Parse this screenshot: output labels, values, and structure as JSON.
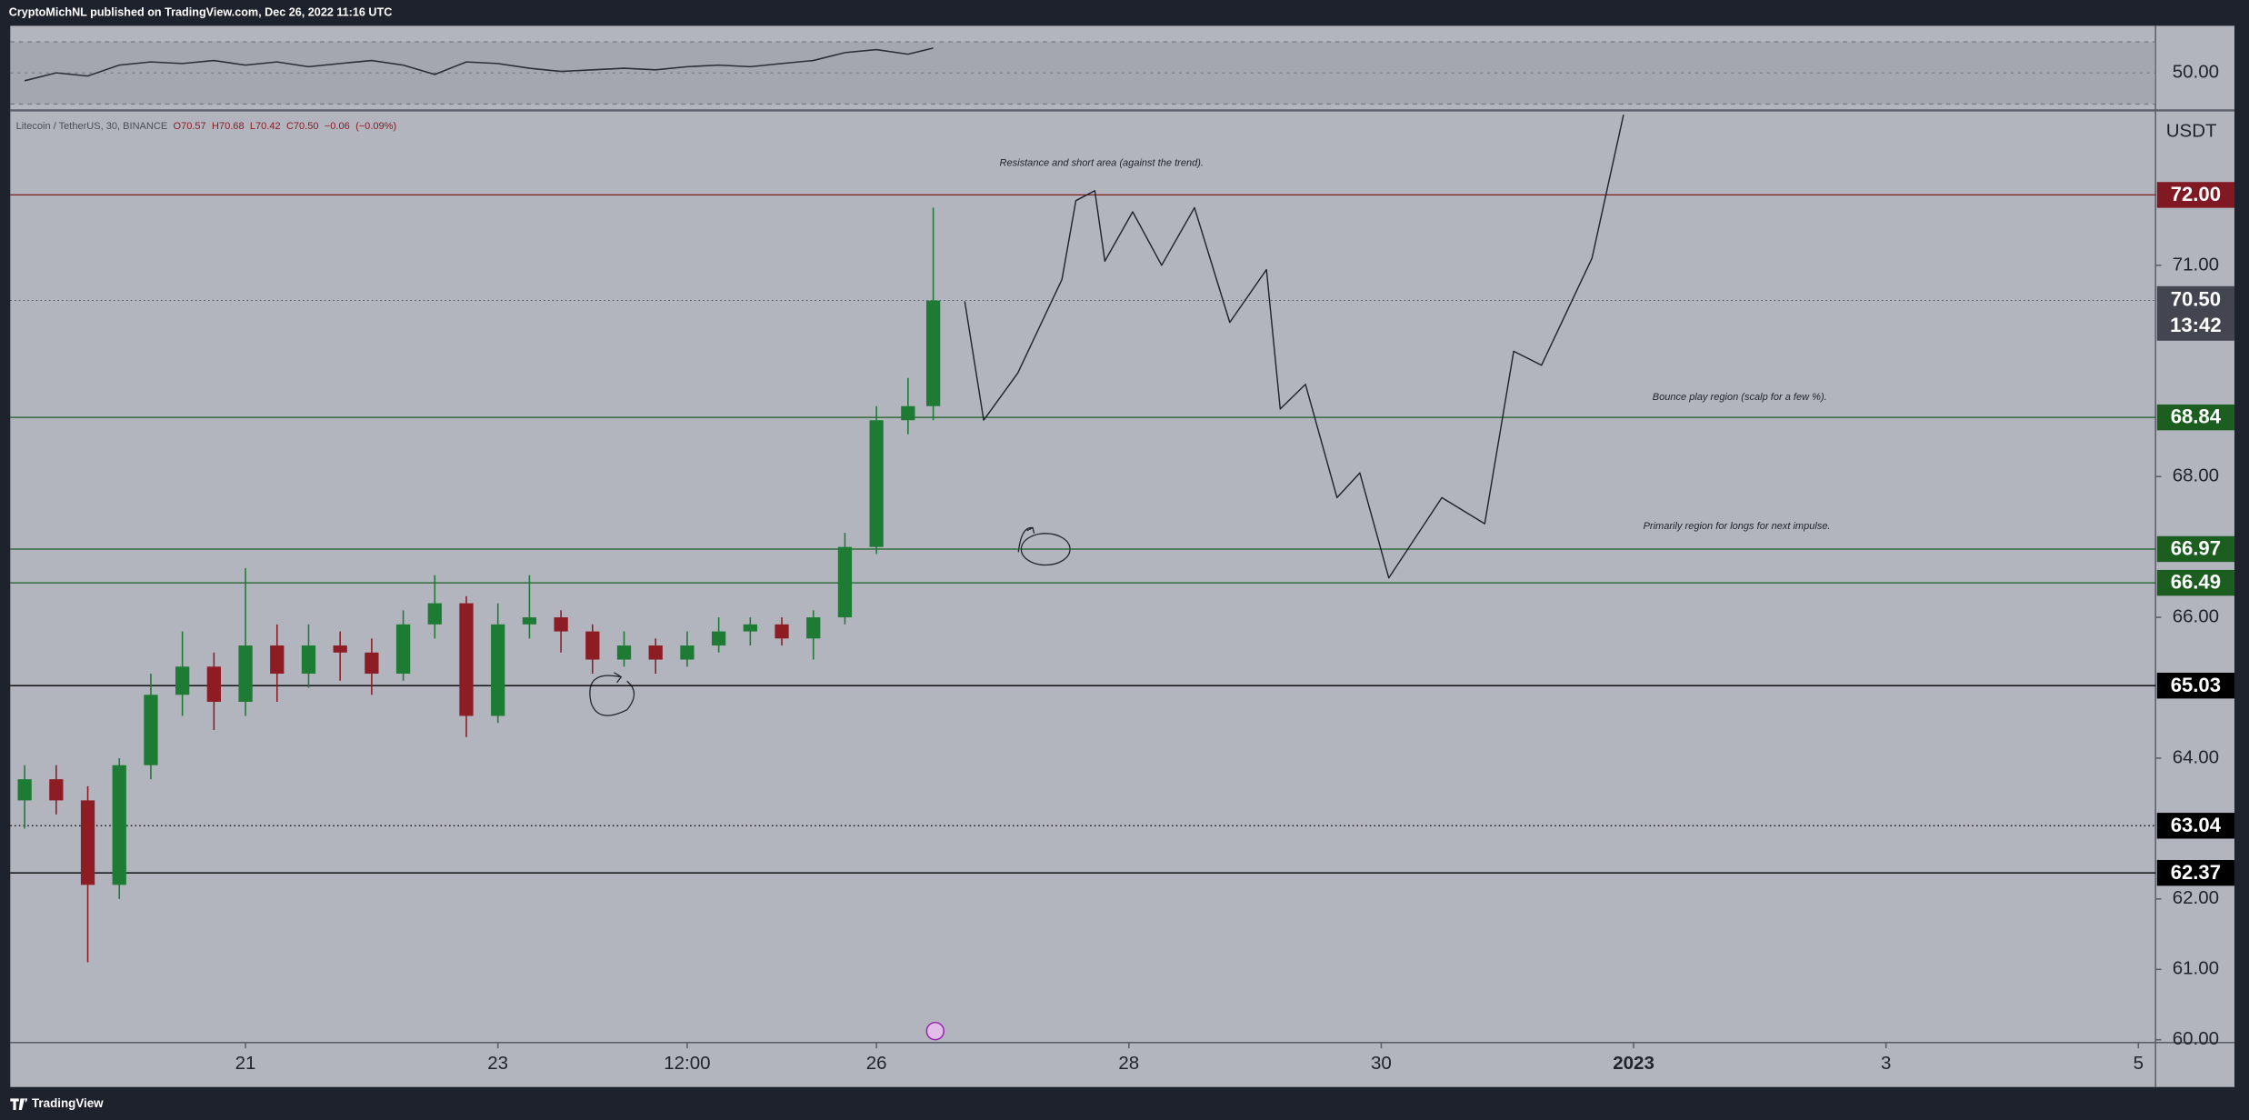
{
  "header": {
    "publisher": "CryptoMichNL published on TradingView.com, Dec 26, 2022 11:16 UTC"
  },
  "footer": {
    "brand": "TradingView"
  },
  "chart_data": [
    {
      "type": "line",
      "color": "#2a2e39",
      "x": [
        19.25,
        19.5,
        19.75,
        20.0,
        20.25,
        20.5,
        20.75,
        21.0,
        21.25,
        21.5,
        21.75,
        22.0,
        22.25,
        22.5,
        22.75,
        23.0,
        23.25,
        23.5,
        23.75,
        24.0,
        24.25,
        24.5,
        24.75,
        25.0,
        25.25,
        25.5,
        25.75,
        26.0,
        26.25,
        26.45
      ],
      "values": [
        45,
        50,
        48,
        55,
        57,
        56,
        58,
        55,
        57,
        54,
        56,
        58,
        55,
        49,
        57,
        56,
        53,
        51,
        52,
        53,
        52,
        54,
        55,
        54,
        56,
        58,
        63,
        65,
        62,
        66
      ],
      "band": [
        30,
        70
      ],
      "ylim": [
        27.7,
        80.3
      ],
      "yticks": [
        {
          "value": 50,
          "label": "50.00"
        }
      ]
    },
    {
      "type": "candlestick",
      "title": "Litecoin / TetherUS, 30, BINANCE",
      "legend": [
        {
          "value": 70.57,
          "label": "O70.57"
        },
        {
          "value": 70.68,
          "label": "H70.68"
        },
        {
          "value": 70.42,
          "label": "L70.42"
        },
        {
          "value": 70.5,
          "label": "C70.50"
        },
        {
          "value": -0.06,
          "label": "−0.06"
        },
        {
          "value": -0.09,
          "label": "(−0.09%)"
        }
      ],
      "up_color": "#1e7b34",
      "down_color": "#8e1c24",
      "x": [
        19.25,
        19.5,
        19.75,
        20.0,
        20.25,
        20.5,
        20.75,
        21.0,
        21.25,
        21.5,
        21.75,
        22.0,
        22.25,
        22.5,
        22.75,
        23.0,
        23.25,
        23.5,
        23.75,
        24.0,
        24.25,
        24.5,
        24.75,
        25.0,
        25.25,
        25.5,
        25.75,
        26.0,
        26.25,
        26.45
      ],
      "open": [
        63.4,
        63.7,
        63.4,
        62.2,
        63.9,
        64.9,
        65.3,
        64.8,
        65.6,
        65.2,
        65.6,
        65.5,
        65.2,
        65.9,
        66.2,
        64.6,
        65.9,
        66.0,
        65.8,
        65.4,
        65.6,
        65.4,
        65.6,
        65.8,
        65.9,
        65.7,
        66.0,
        67.0,
        68.8,
        69.0
      ],
      "high": [
        63.9,
        63.9,
        63.6,
        64.0,
        65.2,
        65.8,
        65.5,
        66.7,
        65.9,
        65.9,
        65.8,
        65.7,
        66.1,
        66.6,
        66.3,
        66.2,
        66.6,
        66.1,
        65.9,
        65.8,
        65.7,
        65.8,
        66.0,
        66.0,
        66.0,
        66.1,
        67.2,
        69.0,
        69.4,
        71.82
      ],
      "low": [
        63.0,
        63.2,
        61.1,
        62.0,
        63.7,
        64.6,
        64.4,
        64.6,
        64.8,
        65.0,
        65.1,
        64.9,
        65.1,
        65.7,
        64.3,
        64.5,
        65.7,
        65.5,
        65.2,
        65.3,
        65.2,
        65.3,
        65.5,
        65.6,
        65.6,
        65.4,
        65.9,
        66.9,
        68.6,
        68.8
      ],
      "close": [
        63.7,
        63.4,
        62.2,
        63.9,
        64.9,
        65.3,
        64.8,
        65.6,
        65.2,
        65.6,
        65.5,
        65.2,
        65.9,
        66.2,
        64.6,
        65.9,
        66.0,
        65.8,
        65.4,
        65.6,
        65.4,
        65.6,
        65.8,
        65.9,
        65.7,
        66.0,
        67.0,
        68.8,
        69.0,
        70.5
      ],
      "xlim": [
        19.136,
        36.136
      ],
      "xticks": [
        21,
        23,
        {
          "value": 24.5,
          "label": "12:00"
        },
        26,
        28,
        30,
        {
          "value": 32,
          "label": "2023"
        },
        {
          "value": 34,
          "label": "3"
        },
        {
          "value": 36,
          "label": "5"
        }
      ],
      "ylim": [
        59.96,
        73.18
      ],
      "yticks": [
        {
          "value": 60,
          "label": "60.00"
        },
        {
          "value": 61,
          "label": "61.00"
        },
        {
          "value": 62,
          "label": "62.00"
        },
        {
          "value": 64,
          "label": "64.00"
        },
        {
          "value": 66,
          "label": "66.00"
        },
        {
          "value": 68,
          "label": "68.00"
        },
        {
          "value": 71,
          "label": "71.00"
        }
      ],
      "y_axis_label": "USDT",
      "levels": [
        {
          "value": 72,
          "label": "72.00",
          "color": "#801922",
          "style": "solid"
        },
        {
          "value": 68.84,
          "label": "68.84",
          "color": "#1b5e20",
          "style": "solid"
        },
        {
          "value": 66.97,
          "label": "66.97",
          "color": "#1b5e20",
          "style": "solid"
        },
        {
          "value": 66.49,
          "label": "66.49",
          "color": "#1b5e20",
          "style": "solid"
        },
        {
          "value": 65.03,
          "label": "65.03",
          "color": "#000000",
          "style": "solid"
        },
        {
          "value": 63.04,
          "label": "63.04",
          "color": "#000000",
          "style": "dotted"
        },
        {
          "value": 62.37,
          "label": "62.37",
          "color": "#000000",
          "style": "solid"
        }
      ],
      "last_price": {
        "value": 70.5,
        "label": "70.50",
        "countdown": "13:42",
        "color": "#434651"
      },
      "projection": {
        "color": "#1f232e",
        "x": [
          26.7,
          26.85,
          27.12,
          27.47,
          27.58,
          27.73,
          27.81,
          28.03,
          28.26,
          28.52,
          28.8,
          29.09,
          29.2,
          29.4,
          29.65,
          29.83,
          30.06,
          30.48,
          30.82,
          31.05,
          31.27,
          31.67,
          31.92
        ],
        "y": [
          70.49,
          68.8,
          69.47,
          70.8,
          71.92,
          72.06,
          71.06,
          71.76,
          71.0,
          71.82,
          70.19,
          70.94,
          68.96,
          69.31,
          67.7,
          68.05,
          66.56,
          67.7,
          67.33,
          69.78,
          69.58,
          71.1,
          73.14
        ]
      },
      "annotations": [
        "Resistance and short area (against the trend).",
        "Bounce play region (scalp for a few %).",
        "Primarily region for longs for next impulse."
      ]
    }
  ]
}
